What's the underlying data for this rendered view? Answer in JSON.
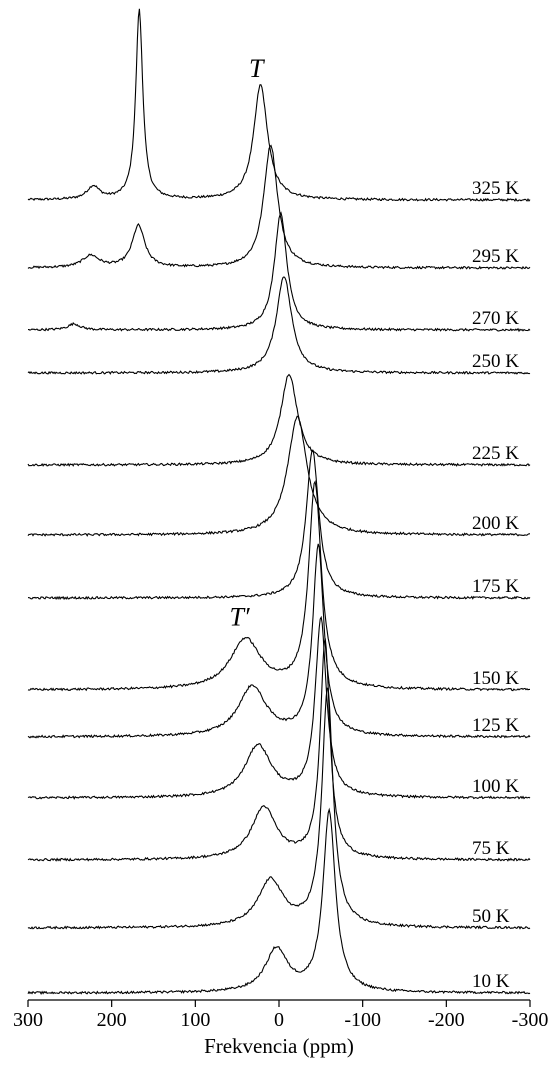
{
  "chart_data": {
    "type": "line",
    "title": "",
    "xlabel": "Frekvencia (ppm)",
    "ylabel": "",
    "xlim": [
      300,
      -300
    ],
    "x_reversed": true,
    "x_ticks": [
      300,
      200,
      100,
      0,
      -100,
      -200,
      -300
    ],
    "x_tick_labels": [
      "300",
      "200",
      "100",
      "0",
      "-100",
      "-200",
      "-300"
    ],
    "peak_labels": [
      {
        "text": "T",
        "temperature": "325 K",
        "ppm": 20
      },
      {
        "text": "T′",
        "temperature": "150 K",
        "ppm": 40
      }
    ],
    "series": [
      {
        "name": "325 K",
        "peaks": [
          {
            "ppm": 167,
            "height": 190,
            "width": 5
          },
          {
            "ppm": 22,
            "height": 115,
            "width": 10
          },
          {
            "ppm": 222,
            "height": 13,
            "width": 9
          }
        ],
        "y_base": 200
      },
      {
        "name": "295 K",
        "peaks": [
          {
            "ppm": 168,
            "height": 42,
            "width": 9
          },
          {
            "ppm": 10,
            "height": 123,
            "width": 10
          },
          {
            "ppm": 225,
            "height": 12,
            "width": 12
          }
        ],
        "y_base": 268
      },
      {
        "name": "270 K",
        "peaks": [
          {
            "ppm": -2,
            "height": 117,
            "width": 9
          },
          {
            "ppm": 245,
            "height": 6,
            "width": 9
          }
        ],
        "y_base": 330
      },
      {
        "name": "250 K",
        "peaks": [
          {
            "ppm": -6,
            "height": 97,
            "width": 11
          }
        ],
        "y_base": 373
      },
      {
        "name": "225 K",
        "peaks": [
          {
            "ppm": -12,
            "height": 91,
            "width": 12
          }
        ],
        "y_base": 465
      },
      {
        "name": "200 K",
        "peaks": [
          {
            "ppm": -22,
            "height": 118,
            "width": 14
          }
        ],
        "y_base": 535
      },
      {
        "name": "175 K",
        "peaks": [
          {
            "ppm": -40,
            "height": 148,
            "width": 9
          }
        ],
        "y_base": 598
      },
      {
        "name": "150 K",
        "peaks": [
          {
            "ppm": 40,
            "height": 50,
            "width": 22
          },
          {
            "ppm": -43,
            "height": 205,
            "width": 9
          }
        ],
        "y_base": 690
      },
      {
        "name": "125 K",
        "peaks": [
          {
            "ppm": 32,
            "height": 50,
            "width": 20
          },
          {
            "ppm": -47,
            "height": 190,
            "width": 8
          }
        ],
        "y_base": 737
      },
      {
        "name": "100 K",
        "peaks": [
          {
            "ppm": 25,
            "height": 52,
            "width": 19
          },
          {
            "ppm": -50,
            "height": 178,
            "width": 8
          }
        ],
        "y_base": 798
      },
      {
        "name": "75 K",
        "peaks": [
          {
            "ppm": 18,
            "height": 52,
            "width": 18
          },
          {
            "ppm": -55,
            "height": 218,
            "width": 7
          }
        ],
        "y_base": 860
      },
      {
        "name": "50 K",
        "peaks": [
          {
            "ppm": 10,
            "height": 47,
            "width": 18
          },
          {
            "ppm": -58,
            "height": 238,
            "width": 8
          }
        ],
        "y_base": 928
      },
      {
        "name": "10 K",
        "peaks": [
          {
            "ppm": 3,
            "height": 43,
            "width": 16
          },
          {
            "ppm": -60,
            "height": 180,
            "width": 9
          }
        ],
        "y_base": 993
      }
    ]
  }
}
